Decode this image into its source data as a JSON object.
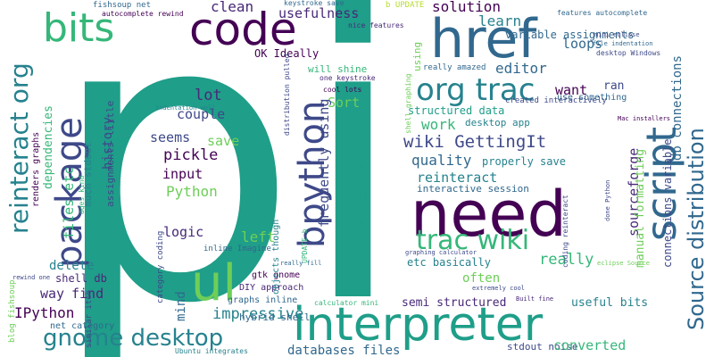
{
  "colors": {
    "background": "#ffffff",
    "palette": [
      "#440154",
      "#482878",
      "#3e4989",
      "#31688e",
      "#26828e",
      "#1f9e89",
      "#35b779",
      "#6ece58",
      "#b5de2b",
      "#fde725"
    ]
  },
  "words": [
    {
      "text": "pi",
      "color": "#1f9e89"
    },
    {
      "text": "need",
      "color": "#440154"
    },
    {
      "text": "interpreter",
      "color": "#1f9e89"
    },
    {
      "text": "code",
      "color": "#440154"
    },
    {
      "text": "bits",
      "color": "#35b779"
    },
    {
      "text": "package",
      "color": "#3e4989"
    },
    {
      "text": "href",
      "color": "#31688e"
    },
    {
      "text": "script",
      "color": "#31688e"
    },
    {
      "text": "bpython",
      "color": "#3e4989"
    },
    {
      "text": "Source distribution",
      "color": "#31688e"
    },
    {
      "text": "org trac",
      "color": "#26828e"
    },
    {
      "text": "trac wiki",
      "color": "#35b779"
    },
    {
      "text": "gnome desktop",
      "color": "#26828e"
    },
    {
      "text": "reinteract org",
      "color": "#26828e"
    },
    {
      "text": "wiki GettingIt",
      "color": "#3e4989"
    },
    {
      "text": "ul",
      "color": "#6ece58"
    },
    {
      "text": "usefulness",
      "color": "#482878"
    },
    {
      "text": "clean",
      "color": "#482878"
    },
    {
      "text": "solution",
      "color": "#440154"
    },
    {
      "text": "learn",
      "color": "#26828e"
    },
    {
      "text": "loops",
      "color": "#31688e"
    },
    {
      "text": "editor",
      "color": "#31688e"
    },
    {
      "text": "use something",
      "color": "#31688e"
    },
    {
      "text": "want",
      "color": "#440154"
    },
    {
      "text": "ran",
      "color": "#3e4989"
    },
    {
      "text": "lot",
      "color": "#482878"
    },
    {
      "text": "Sort",
      "color": "#6ece58"
    },
    {
      "text": "couple",
      "color": "#3e4989"
    },
    {
      "text": "seems",
      "color": "#3e4989"
    },
    {
      "text": "save",
      "color": "#6ece58"
    },
    {
      "text": "pickle",
      "color": "#440154"
    },
    {
      "text": "input",
      "color": "#440154"
    },
    {
      "text": "Python",
      "color": "#6ece58"
    },
    {
      "text": "history",
      "color": "#3e4989"
    },
    {
      "text": "dependencies",
      "color": "#35b779"
    },
    {
      "text": "files etc",
      "color": "#35b779"
    },
    {
      "text": "frequently using",
      "color": "#3e4989"
    },
    {
      "text": "work",
      "color": "#35b779"
    },
    {
      "text": "structured data",
      "color": "#1f9e89"
    },
    {
      "text": "desktop app",
      "color": "#26828e"
    },
    {
      "text": "quality",
      "color": "#31688e"
    },
    {
      "text": "properly save",
      "color": "#26828e"
    },
    {
      "text": "reinteract",
      "color": "#26828e"
    },
    {
      "text": "interactive session",
      "color": "#31688e"
    },
    {
      "text": "visualization",
      "color": "#1f9e89"
    },
    {
      "text": "sourceforge",
      "color": "#482878"
    },
    {
      "text": "manual formatting",
      "color": "#6ece58"
    },
    {
      "text": "connections variable",
      "color": "#3e4989"
    },
    {
      "text": "db connections",
      "color": "#31688e"
    },
    {
      "text": "variable assignments",
      "color": "#31688e"
    },
    {
      "text": "logic",
      "color": "#482878"
    },
    {
      "text": "left",
      "color": "#6ece58"
    },
    {
      "text": "mind",
      "color": "#31688e"
    },
    {
      "text": "impressive",
      "color": "#26828e"
    },
    {
      "text": "often",
      "color": "#6ece58"
    },
    {
      "text": "really",
      "color": "#35b779"
    },
    {
      "text": "etc basically",
      "color": "#26828e"
    },
    {
      "text": "delete",
      "color": "#26828e"
    },
    {
      "text": "way",
      "color": "#482878"
    },
    {
      "text": "find",
      "color": "#482878"
    },
    {
      "text": "shell db",
      "color": "#482878"
    },
    {
      "text": "IPython",
      "color": "#440154"
    },
    {
      "text": "semi structured",
      "color": "#482878"
    },
    {
      "text": "useful bits",
      "color": "#26828e"
    },
    {
      "text": "databases files",
      "color": "#31688e"
    },
    {
      "text": "stdout noise",
      "color": "#3e4989"
    },
    {
      "text": "converted",
      "color": "#35b779"
    },
    {
      "text": "net category",
      "color": "#31688e"
    },
    {
      "text": "similar itch",
      "color": "#3e4989"
    },
    {
      "text": "hybrid shell",
      "color": "#31688e"
    },
    {
      "text": "DIY approach",
      "color": "#482878"
    },
    {
      "text": "graphs inline",
      "color": "#31688e"
    },
    {
      "text": "gtk gnome",
      "color": "#440154"
    },
    {
      "text": "inline Imagine",
      "color": "#31688e"
    },
    {
      "text": "OK Ideally",
      "color": "#440154"
    },
    {
      "text": "will shine",
      "color": "#35b779"
    },
    {
      "text": "one keystroke",
      "color": "#482878"
    },
    {
      "text": "cool lots",
      "color": "#440154"
    },
    {
      "text": "keystroke save",
      "color": "#31688e"
    },
    {
      "text": "nice features",
      "color": "#482878"
    },
    {
      "text": "b UPDATE",
      "color": "#b5de2b"
    },
    {
      "text": "really amazed",
      "color": "#31688e"
    },
    {
      "text": "created interactively",
      "color": "#3e4989"
    },
    {
      "text": "using",
      "color": "#6ece58"
    },
    {
      "text": "fishsoup net",
      "color": "#31688e"
    },
    {
      "text": "autocomplete rewind",
      "color": "#440154"
    },
    {
      "text": "features autocomplete",
      "color": "#31688e"
    },
    {
      "text": "mini eclipse",
      "color": "#3e4989"
    },
    {
      "text": "file indentation",
      "color": "#31688e"
    },
    {
      "text": "desktop Windows",
      "color": "#3e4989"
    },
    {
      "text": "Mac installers",
      "color": "#440154"
    },
    {
      "text": "done Python",
      "color": "#3e4989"
    },
    {
      "text": "eclipse Source",
      "color": "#6ece58"
    },
    {
      "text": "coding reinteract",
      "color": "#3e4989"
    },
    {
      "text": "Built fine",
      "color": "#482878"
    },
    {
      "text": "extremely cool",
      "color": "#3e4989"
    },
    {
      "text": "calculator mini",
      "color": "#35b779"
    },
    {
      "text": "graphing calculator",
      "color": "#3e4989"
    },
    {
      "text": "shell graphing",
      "color": "#6ece58"
    },
    {
      "text": "distribution pulled",
      "color": "#3e4989"
    },
    {
      "text": "indentation well",
      "color": "#26828e"
    },
    {
      "text": "UPDATE b",
      "color": "#35b779"
    },
    {
      "text": "objects though",
      "color": "#26828e"
    },
    {
      "text": "really fill",
      "color": "#31688e"
    },
    {
      "text": "category coding",
      "color": "#3e4989"
    },
    {
      "text": "Ubuntu integrates",
      "color": "#26828e"
    },
    {
      "text": "ages kind",
      "color": "#35b779"
    },
    {
      "text": "much stdout",
      "color": "#26828e"
    },
    {
      "text": "assignments little",
      "color": "#3e4989"
    },
    {
      "text": "renders graphs",
      "color": "#440154"
    },
    {
      "text": "blog fishsoup",
      "color": "#6ece58"
    },
    {
      "text": "rewind one",
      "color": "#3e4989"
    }
  ]
}
